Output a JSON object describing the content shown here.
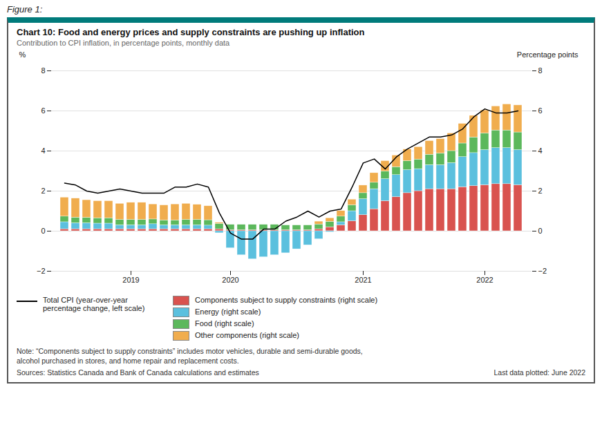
{
  "chart_data": {
    "type": "bar",
    "figure_label": "Figure 1:",
    "title": "Chart 10: Food and energy prices and supply constraints are pushing up inflation",
    "subtitle": "Contribution to CPI inflation, in percentage points, monthly data",
    "ylabel": "%",
    "y2label": "Percentage points",
    "notes": [
      "Note: “Components subject to supply constraints” includes motor vehicles, durable and semi-durable goods,",
      "alcohol purchased in stores, and home repair and replacement costs."
    ],
    "source": "Sources: Statistics Canada and Bank of Canada calculations and estimates",
    "last_data": "Last data plotted: June 2022",
    "categories": [
      null,
      null,
      null,
      null,
      null,
      null,
      "2019",
      null,
      null,
      null,
      null,
      null,
      null,
      null,
      null,
      "2020",
      null,
      null,
      null,
      null,
      null,
      null,
      null,
      null,
      null,
      null,
      null,
      "2021",
      null,
      null,
      null,
      null,
      null,
      null,
      null,
      null,
      null,
      null,
      "2022",
      null,
      null,
      null
    ],
    "ylim": [
      -2,
      8
    ],
    "yticks": [
      -2,
      0,
      2,
      4,
      6,
      8
    ],
    "y2lim": [
      -2,
      8
    ],
    "y2ticks": [
      -2,
      0,
      2,
      4,
      6,
      8
    ],
    "grid": true,
    "stacked": true,
    "legend": "bottom",
    "series": [
      {
        "name": "Components subject to supply constraints (right scale)",
        "type": "bar",
        "axis": "y2",
        "color": "#d9534f",
        "values": [
          0.1,
          0.1,
          0.1,
          0.1,
          0.1,
          0.1,
          0.1,
          0.1,
          0.1,
          0.1,
          0.1,
          0.1,
          0.1,
          0.1,
          0.1,
          0.05,
          0.05,
          0.05,
          0.05,
          0.05,
          0.05,
          0.05,
          0.05,
          0.1,
          0.2,
          0.3,
          0.5,
          0.8,
          1.1,
          1.5,
          1.7,
          1.9,
          2.0,
          2.1,
          2.1,
          2.1,
          2.2,
          2.25,
          2.3,
          2.35,
          2.35,
          2.3
        ]
      },
      {
        "name": "Energy (right scale)",
        "type": "bar",
        "axis": "y2",
        "color": "#5bc0de",
        "values": [
          0.35,
          0.3,
          0.3,
          0.28,
          0.28,
          0.2,
          0.2,
          0.2,
          0.25,
          0.2,
          0.2,
          0.2,
          0.2,
          0.18,
          -0.1,
          -0.85,
          -1.2,
          -1.4,
          -1.3,
          -1.2,
          -1.1,
          -0.9,
          -0.7,
          -0.4,
          -0.05,
          0.15,
          0.5,
          0.8,
          1.0,
          1.1,
          1.1,
          1.15,
          1.1,
          1.2,
          1.2,
          1.3,
          1.5,
          1.65,
          1.75,
          1.8,
          1.8,
          1.75
        ]
      },
      {
        "name": "Food (right scale)",
        "type": "bar",
        "axis": "y2",
        "color": "#5cb85c",
        "values": [
          0.28,
          0.28,
          0.27,
          0.27,
          0.27,
          0.27,
          0.27,
          0.27,
          0.24,
          0.24,
          0.24,
          0.27,
          0.27,
          0.27,
          0.27,
          0.27,
          0.27,
          0.27,
          0.27,
          0.27,
          0.24,
          0.24,
          0.24,
          0.24,
          0.27,
          0.28,
          0.3,
          0.3,
          0.32,
          0.38,
          0.4,
          0.45,
          0.48,
          0.52,
          0.58,
          0.6,
          0.68,
          0.78,
          0.83,
          0.88,
          0.88,
          0.88
        ]
      },
      {
        "name": "Other components (right scale)",
        "type": "bar",
        "axis": "y2",
        "color": "#f0ad4e",
        "values": [
          0.95,
          0.95,
          0.88,
          0.85,
          0.85,
          0.8,
          0.85,
          0.85,
          0.75,
          0.75,
          0.8,
          0.8,
          0.75,
          0.7,
          0.05,
          0.0,
          0.0,
          0.0,
          0.0,
          0.0,
          0.0,
          0.0,
          0.0,
          0.14,
          0.18,
          0.28,
          0.28,
          0.38,
          0.48,
          0.52,
          0.58,
          0.58,
          0.62,
          0.68,
          0.72,
          0.88,
          0.98,
          1.08,
          1.15,
          1.2,
          1.3,
          1.35
        ]
      },
      {
        "name": "Total CPI (year-over-year percentage change, left scale)",
        "type": "line",
        "axis": "y",
        "color": "#000000",
        "values": [
          2.4,
          2.3,
          2.0,
          1.9,
          2.0,
          2.1,
          2.0,
          1.9,
          1.9,
          1.9,
          2.2,
          2.2,
          2.35,
          2.2,
          0.9,
          -0.1,
          -0.4,
          -0.4,
          0.1,
          0.1,
          0.5,
          0.7,
          1.0,
          0.7,
          1.0,
          1.1,
          2.2,
          3.4,
          3.6,
          3.1,
          3.7,
          4.1,
          4.4,
          4.7,
          4.7,
          4.8,
          5.1,
          5.7,
          6.1,
          5.9,
          5.9,
          6.0
        ]
      }
    ]
  }
}
